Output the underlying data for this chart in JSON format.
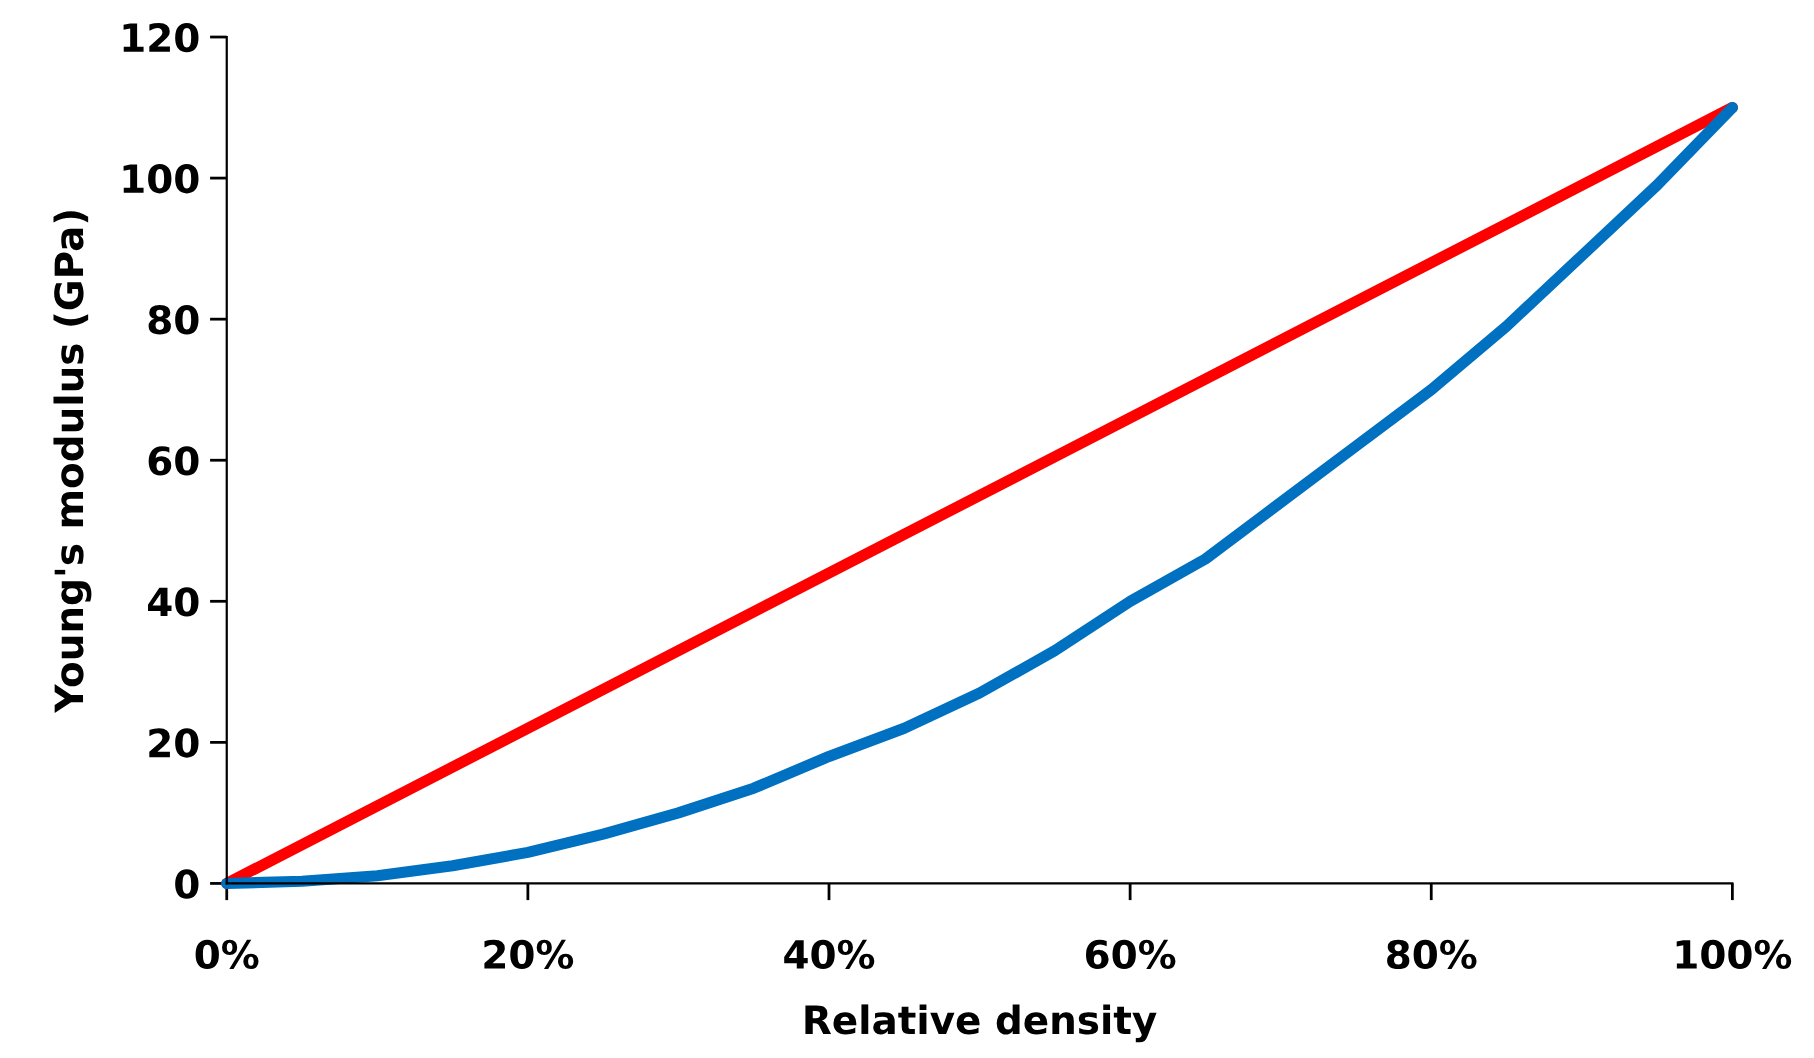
{
  "chart_data": {
    "type": "line",
    "xlabel": "Relative density",
    "ylabel": "Young's modulus (GPa)",
    "xlim": [
      0,
      100
    ],
    "xticks": [
      {
        "value": 0,
        "label": "0%"
      },
      {
        "value": 20,
        "label": "20%"
      },
      {
        "value": 40,
        "label": "40%"
      },
      {
        "value": 60,
        "label": "60%"
      },
      {
        "value": 80,
        "label": "80%"
      },
      {
        "value": 100,
        "label": "100%"
      }
    ],
    "ylim": [
      0,
      120
    ],
    "yticks": [
      0,
      20,
      40,
      60,
      80,
      100,
      120
    ],
    "grid": false,
    "marker": "none",
    "line_style": "solid",
    "series": [
      {
        "color": "#ff0000",
        "x": [
          0,
          100
        ],
        "values": [
          0,
          110
        ]
      },
      {
        "color": "#0070c0",
        "x": [
          0,
          5,
          10,
          15,
          20,
          25,
          30,
          35,
          40,
          45,
          50,
          55,
          60,
          65,
          70,
          75,
          80,
          85,
          90,
          95,
          100
        ],
        "values": [
          0,
          0.3,
          1.1,
          2.5,
          4.4,
          7,
          10,
          13.5,
          18,
          22,
          27,
          33,
          40,
          46,
          54,
          62,
          70,
          79,
          89,
          99,
          110
        ]
      }
    ]
  }
}
